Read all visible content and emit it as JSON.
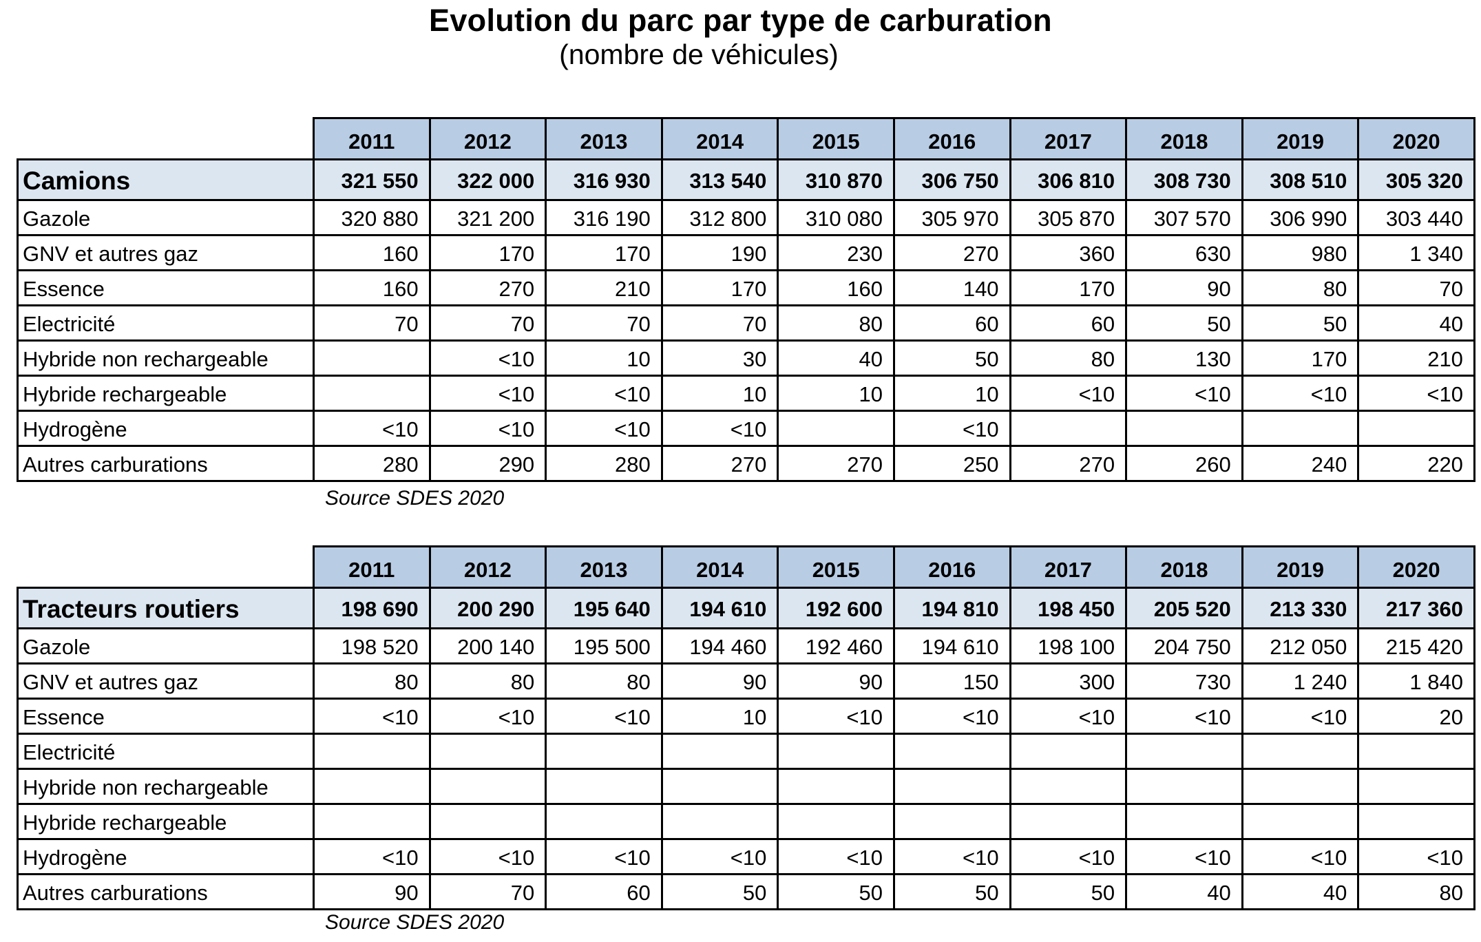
{
  "title": "Evolution du parc par type de carburation",
  "subtitle": "(nombre de véhicules)",
  "years": [
    "2011",
    "2012",
    "2013",
    "2014",
    "2015",
    "2016",
    "2017",
    "2018",
    "2019",
    "2020"
  ],
  "tables": [
    {
      "category": "Camions",
      "total": [
        "321 550",
        "322 000",
        "316 930",
        "313 540",
        "310 870",
        "306 750",
        "306 810",
        "308 730",
        "308 510",
        "305 320"
      ],
      "rows": [
        {
          "label": "Gazole",
          "values": [
            "320 880",
            "321 200",
            "316 190",
            "312 800",
            "310 080",
            "305 970",
            "305 870",
            "307 570",
            "306 990",
            "303 440"
          ]
        },
        {
          "label": "GNV et autres gaz",
          "values": [
            "160",
            "170",
            "170",
            "190",
            "230",
            "270",
            "360",
            "630",
            "980",
            "1 340"
          ]
        },
        {
          "label": "Essence",
          "values": [
            "160",
            "270",
            "210",
            "170",
            "160",
            "140",
            "170",
            "90",
            "80",
            "70"
          ]
        },
        {
          "label": "Electricité",
          "values": [
            "70",
            "70",
            "70",
            "70",
            "80",
            "60",
            "60",
            "50",
            "50",
            "40"
          ]
        },
        {
          "label": "Hybride non rechargeable",
          "values": [
            "",
            "<10",
            "10",
            "30",
            "40",
            "50",
            "80",
            "130",
            "170",
            "210"
          ]
        },
        {
          "label": "Hybride rechargeable",
          "values": [
            "",
            "<10",
            "<10",
            "10",
            "10",
            "10",
            "<10",
            "<10",
            "<10",
            "<10"
          ]
        },
        {
          "label": "Hydrogène",
          "values": [
            "<10",
            "<10",
            "<10",
            "<10",
            "",
            "<10",
            "",
            "",
            "",
            ""
          ]
        },
        {
          "label": "Autres carburations",
          "values": [
            "280",
            "290",
            "280",
            "270",
            "270",
            "250",
            "270",
            "260",
            "240",
            "220"
          ]
        }
      ],
      "source": "Source SDES 2020"
    },
    {
      "category": "Tracteurs routiers",
      "total": [
        "198 690",
        "200 290",
        "195 640",
        "194 610",
        "192 600",
        "194 810",
        "198 450",
        "205 520",
        "213 330",
        "217 360"
      ],
      "rows": [
        {
          "label": "Gazole",
          "values": [
            "198 520",
            "200 140",
            "195 500",
            "194 460",
            "192 460",
            "194 610",
            "198 100",
            "204 750",
            "212 050",
            "215 420"
          ]
        },
        {
          "label": "GNV et autres gaz",
          "values": [
            "80",
            "80",
            "80",
            "90",
            "90",
            "150",
            "300",
            "730",
            "1 240",
            "1 840"
          ]
        },
        {
          "label": "Essence",
          "values": [
            "<10",
            "<10",
            "<10",
            "10",
            "<10",
            "<10",
            "<10",
            "<10",
            "<10",
            "20"
          ]
        },
        {
          "label": "Electricité",
          "values": [
            "",
            "",
            "",
            "",
            "",
            "",
            "",
            "",
            "",
            ""
          ]
        },
        {
          "label": "Hybride non rechargeable",
          "values": [
            "",
            "",
            "",
            "",
            "",
            "",
            "",
            "",
            "",
            ""
          ]
        },
        {
          "label": "Hybride rechargeable",
          "values": [
            "",
            "",
            "",
            "",
            "",
            "",
            "",
            "",
            "",
            ""
          ]
        },
        {
          "label": "Hydrogène",
          "values": [
            "<10",
            "<10",
            "<10",
            "<10",
            "<10",
            "<10",
            "<10",
            "<10",
            "<10",
            "<10"
          ]
        },
        {
          "label": "Autres carburations",
          "values": [
            "90",
            "70",
            "60",
            "50",
            "50",
            "50",
            "50",
            "40",
            "40",
            "80"
          ]
        }
      ],
      "source": "Source SDES 2020"
    }
  ]
}
